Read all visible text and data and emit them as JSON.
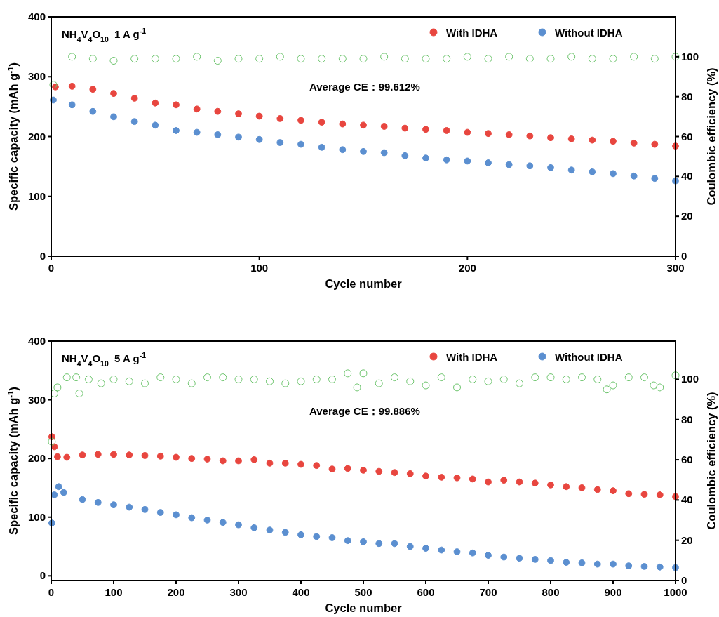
{
  "chart_data": [
    {
      "type": "scatter",
      "xlabel": "Cycle number",
      "ylabel": "Specific capacity (mAh g$^{-1}$)",
      "y2label": "Coulombic efficiency (%)",
      "annotations": [
        "NH$_{4}$V$_{4}$O$_{10}$  1 A g$^{-1}$",
        "Average CE：99.612%"
      ],
      "xlim": [
        0,
        300
      ],
      "xticks": [
        0,
        100,
        200,
        300
      ],
      "ylim": [
        0,
        400
      ],
      "yticks": [
        0,
        100,
        200,
        300,
        400
      ],
      "y2lim": [
        0,
        120
      ],
      "y2ticks": [
        0,
        20,
        40,
        60,
        80,
        100
      ],
      "legend": "top right",
      "marker": "circle",
      "grid": false,
      "series": [
        {
          "name": "With IDHA",
          "color": "#e8463f",
          "x": [
            2,
            10,
            20,
            30,
            40,
            50,
            60,
            70,
            80,
            90,
            100,
            110,
            120,
            130,
            140,
            150,
            160,
            170,
            180,
            190,
            200,
            210,
            220,
            230,
            240,
            250,
            260,
            270,
            280,
            290,
            300
          ],
          "values": [
            283,
            284,
            279,
            272,
            264,
            256,
            253,
            246,
            242,
            238,
            234,
            230,
            227,
            224,
            221,
            219,
            217,
            214,
            212,
            210,
            207,
            205,
            203,
            201,
            198,
            196,
            194,
            192,
            189,
            187,
            184
          ]
        },
        {
          "name": "Without IDHA",
          "color": "#5b8fd0",
          "x": [
            1,
            10,
            20,
            30,
            40,
            50,
            60,
            70,
            80,
            90,
            100,
            110,
            120,
            130,
            140,
            150,
            160,
            170,
            180,
            190,
            200,
            210,
            220,
            230,
            240,
            250,
            260,
            270,
            280,
            290,
            300
          ],
          "values": [
            261,
            253,
            242,
            233,
            225,
            219,
            210,
            207,
            203,
            199,
            195,
            190,
            187,
            182,
            178,
            175,
            173,
            168,
            164,
            161,
            159,
            156,
            153,
            151,
            148,
            144,
            141,
            138,
            134,
            130,
            126
          ]
        },
        {
          "color": "#6cc46c",
          "axis": "y2",
          "x": [
            1,
            10,
            20,
            30,
            40,
            50,
            60,
            70,
            80,
            90,
            100,
            110,
            120,
            130,
            140,
            150,
            160,
            170,
            180,
            190,
            200,
            210,
            220,
            230,
            240,
            250,
            260,
            270,
            280,
            290,
            300
          ],
          "values": [
            86,
            100,
            99,
            98,
            99,
            99,
            99,
            100,
            98,
            99,
            99,
            100,
            99,
            99,
            99,
            99,
            100,
            99,
            99,
            99,
            100,
            99,
            100,
            99,
            99,
            100,
            99,
            99,
            100,
            99,
            100
          ]
        }
      ]
    },
    {
      "type": "scatter",
      "xlabel": "Cycle number",
      "ylabel": "Specific capacity (mAh g$^{-1}$)",
      "y2label": "Coulombic efficiency (%)",
      "annotations": [
        "NH$_{4}$V$_{4}$O$_{10}$  5 A g$^{-1}$",
        "Average CE：99.886%"
      ],
      "xlim": [
        0,
        1000
      ],
      "xticks": [
        0,
        100,
        200,
        300,
        400,
        500,
        600,
        700,
        800,
        900,
        1000
      ],
      "ylim": [
        -8,
        400
      ],
      "yticks": [
        0,
        100,
        200,
        300,
        400
      ],
      "y2lim": [
        0,
        119
      ],
      "y2ticks": [
        0,
        20,
        40,
        60,
        80,
        100
      ],
      "legend": "top right",
      "marker": "circle",
      "series": [
        {
          "name": "With IDHA",
          "color": "#e8463f",
          "x": [
            1,
            5,
            10,
            25,
            50,
            75,
            100,
            125,
            150,
            175,
            200,
            225,
            250,
            275,
            300,
            325,
            350,
            375,
            400,
            425,
            450,
            475,
            500,
            525,
            550,
            575,
            600,
            625,
            650,
            675,
            700,
            725,
            750,
            775,
            800,
            825,
            850,
            875,
            900,
            925,
            950,
            975,
            1000
          ],
          "values": [
            237,
            220,
            203,
            202,
            206,
            207,
            207,
            206,
            205,
            204,
            202,
            200,
            199,
            196,
            196,
            198,
            192,
            192,
            190,
            188,
            182,
            183,
            180,
            178,
            176,
            174,
            170,
            168,
            167,
            165,
            160,
            163,
            160,
            158,
            155,
            152,
            150,
            147,
            145,
            140,
            139,
            138,
            135
          ]
        },
        {
          "name": "Without IDHA",
          "color": "#5b8fd0",
          "x": [
            1,
            5,
            12,
            20,
            50,
            75,
            100,
            125,
            150,
            175,
            200,
            225,
            250,
            275,
            300,
            325,
            350,
            375,
            400,
            425,
            450,
            475,
            500,
            525,
            550,
            575,
            600,
            625,
            650,
            675,
            700,
            725,
            750,
            775,
            800,
            825,
            850,
            875,
            900,
            925,
            950,
            975,
            1000
          ],
          "values": [
            90,
            138,
            152,
            142,
            130,
            125,
            121,
            117,
            113,
            108,
            104,
            99,
            95,
            91,
            87,
            82,
            78,
            74,
            70,
            67,
            65,
            60,
            58,
            55,
            55,
            50,
            47,
            44,
            41,
            39,
            35,
            32,
            30,
            28,
            26,
            23,
            22,
            20,
            20,
            17,
            16,
            15,
            14
          ]
        },
        {
          "color": "#6cc46c",
          "axis": "y2",
          "x": [
            1,
            5,
            10,
            25,
            40,
            45,
            60,
            80,
            100,
            125,
            150,
            175,
            200,
            225,
            250,
            275,
            300,
            325,
            350,
            375,
            400,
            425,
            450,
            475,
            490,
            500,
            525,
            550,
            575,
            600,
            625,
            650,
            675,
            700,
            725,
            750,
            775,
            800,
            825,
            850,
            875,
            890,
            900,
            925,
            950,
            965,
            975,
            1000
          ],
          "values": [
            69,
            93,
            96,
            101,
            101,
            93,
            100,
            98,
            100,
            99,
            98,
            101,
            100,
            98,
            101,
            101,
            100,
            100,
            99,
            98,
            99,
            100,
            100,
            103,
            96,
            103,
            98,
            101,
            99,
            97,
            101,
            96,
            100,
            99,
            100,
            98,
            101,
            101,
            100,
            101,
            100,
            95,
            97,
            101,
            101,
            97,
            96,
            102
          ]
        }
      ]
    }
  ]
}
